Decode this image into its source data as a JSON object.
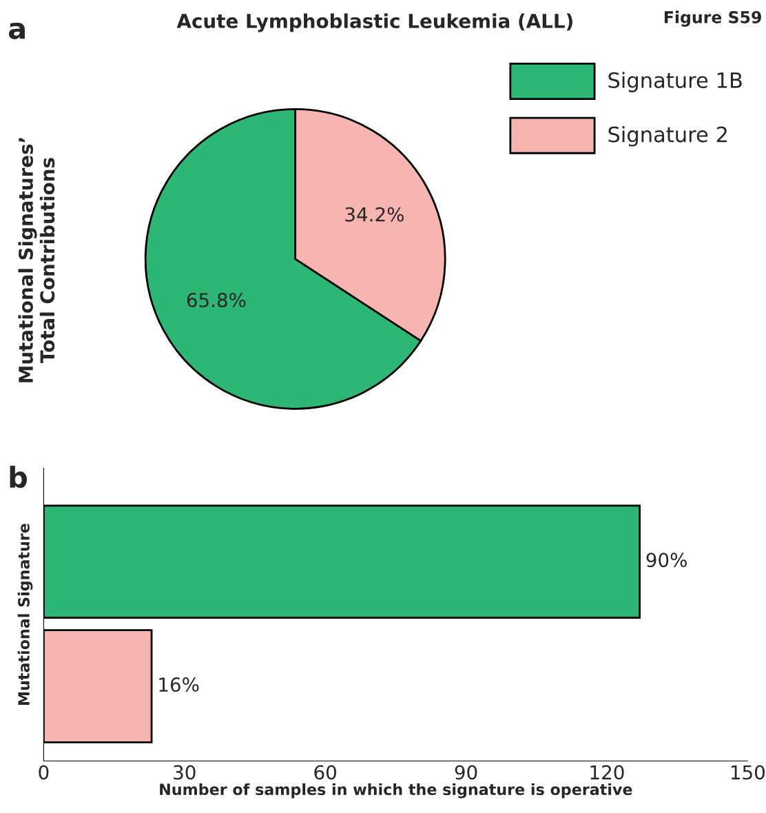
{
  "chart_data": [
    {
      "type": "pie",
      "title": "Acute Lymphoblastic Leukemia (ALL)",
      "ylabel": "Mutational Signatures’\nTotal Contributions",
      "categories": [
        "Signature 1B",
        "Signature 2"
      ],
      "values": [
        65.8,
        34.2
      ],
      "colors": [
        "#2db674",
        "#f7b5b2"
      ],
      "value_labels": [
        "65.8%",
        "34.2%"
      ],
      "legend": "top right",
      "annotations": [
        "a",
        "Figure S59"
      ]
    },
    {
      "type": "bar",
      "orientation": "horizontal",
      "xlabel": "Number of samples in which the signature is operative",
      "ylabel": "Mutational Signature",
      "categories": [
        null,
        null
      ],
      "values": [
        127,
        23
      ],
      "colors": [
        "#2db674",
        "#f7b5b2"
      ],
      "xlim": [
        0,
        150
      ],
      "xticks": [
        0,
        30,
        60,
        90,
        120,
        150
      ],
      "grid": false,
      "legend": false,
      "annotations": [
        "b",
        "90%",
        "16%"
      ]
    }
  ]
}
